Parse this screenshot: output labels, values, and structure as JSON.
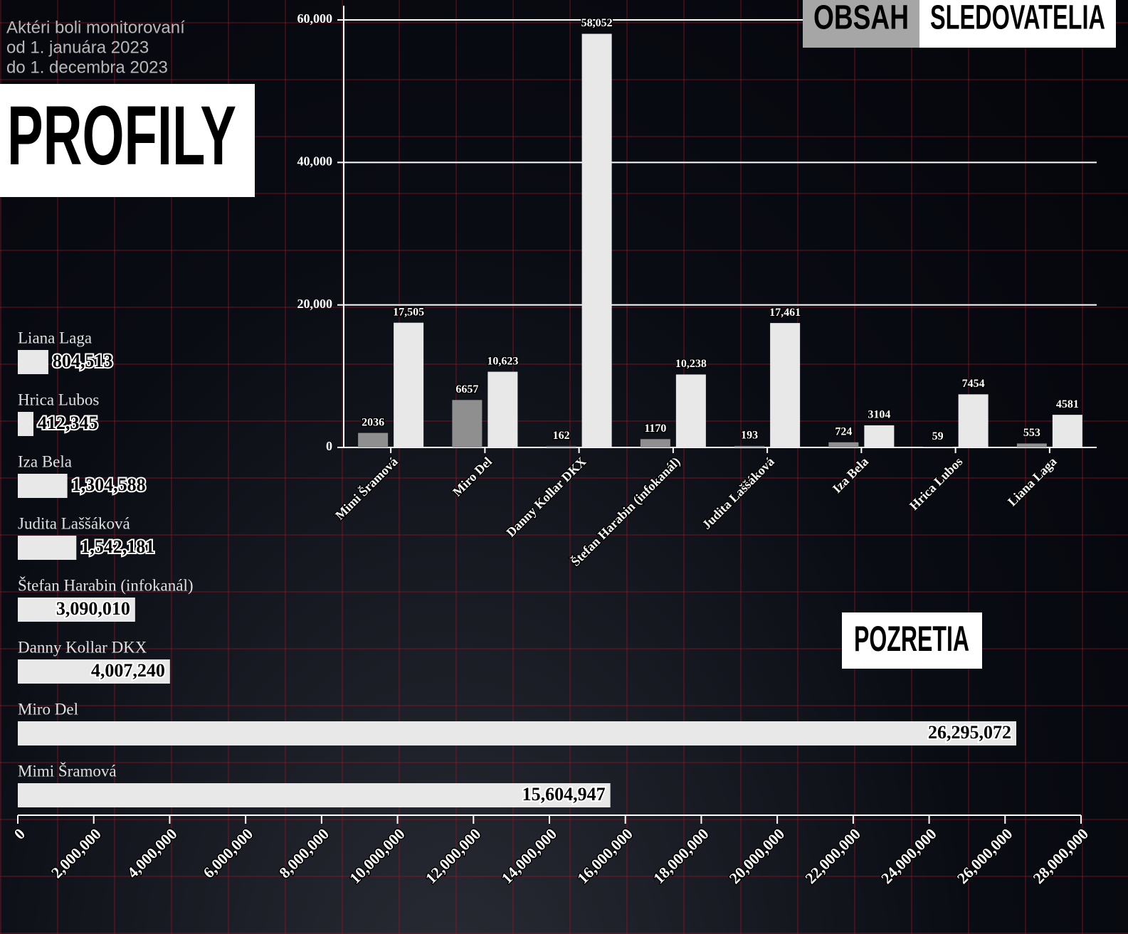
{
  "header": {
    "subtitle": [
      "Aktéri boli monitorovaní",
      "od 1. januára 2023",
      "do 1. decembra 2023"
    ],
    "title": "PROFILY"
  },
  "chart_data": [
    {
      "type": "bar",
      "categories": [
        "Mimi Šramová",
        "Miro Del",
        "Danny Kollar DKX",
        "Štefan Harabin (infokanál)",
        "Judita Laššáková",
        "Iza Bela",
        "Hrica Lubos",
        "Liana Laga"
      ],
      "series": [
        {
          "name": "OBSAH",
          "color": "#8f8f8f",
          "values": [
            2036,
            6657,
            162,
            1170,
            193,
            724,
            59,
            553
          ],
          "value_labels": [
            "2036",
            "6657",
            "162",
            "1170",
            "193",
            "724",
            "59",
            "553"
          ]
        },
        {
          "name": "SLEDOVATELIA",
          "color": "#e8e8e8",
          "values": [
            17505,
            10623,
            58052,
            10238,
            17461,
            3104,
            7454,
            4581
          ],
          "value_labels": [
            "17,505",
            "10,623",
            "58,052",
            "10,238",
            "17,461",
            "3104",
            "7454",
            "4581"
          ]
        }
      ],
      "ylim": [
        0,
        62000
      ],
      "yticks": [
        0,
        {
          "value": 20000,
          "label": "20,000"
        },
        {
          "value": 40000,
          "label": "40,000"
        },
        {
          "value": 60000,
          "label": "60,000"
        }
      ],
      "grid": true
    },
    {
      "type": "hbar",
      "title": "POZRETIA",
      "categories": [
        "Liana Laga",
        "Hrica Lubos",
        "Iza Bela",
        "Judita Laššáková",
        "Štefan Harabin (infokanál)",
        "Danny Kollar DKX",
        "Miro Del",
        "Mimi Šramová"
      ],
      "values": [
        804513,
        412345,
        1304588,
        1542181,
        3090010,
        4007240,
        26295072,
        15604947
      ],
      "value_labels": [
        "804,513",
        "412,345",
        "1,304,588",
        "1,542,181",
        "3,090,010",
        "4,007,240",
        "26,295,072",
        "15,604,947"
      ],
      "color": "#e8e8e8",
      "xlim": [
        0,
        28000000
      ],
      "xticks": [
        0,
        {
          "value": 2000000,
          "label": "2,000,000"
        },
        {
          "value": 4000000,
          "label": "4,000,000"
        },
        {
          "value": 6000000,
          "label": "6,000,000"
        },
        {
          "value": 8000000,
          "label": "8,000,000"
        },
        {
          "value": 10000000,
          "label": "10,000,000"
        },
        {
          "value": 12000000,
          "label": "12,000,000"
        },
        {
          "value": 14000000,
          "label": "14,000,000"
        },
        {
          "value": 16000000,
          "label": "16,000,000"
        },
        {
          "value": 18000000,
          "label": "18,000,000"
        },
        {
          "value": 20000000,
          "label": "20,000,000"
        },
        {
          "value": 22000000,
          "label": "22,000,000"
        },
        {
          "value": 24000000,
          "label": "24,000,000"
        },
        {
          "value": 26000000,
          "label": "26,000,000"
        },
        {
          "value": 28000000,
          "label": "28,000,000"
        }
      ]
    }
  ]
}
